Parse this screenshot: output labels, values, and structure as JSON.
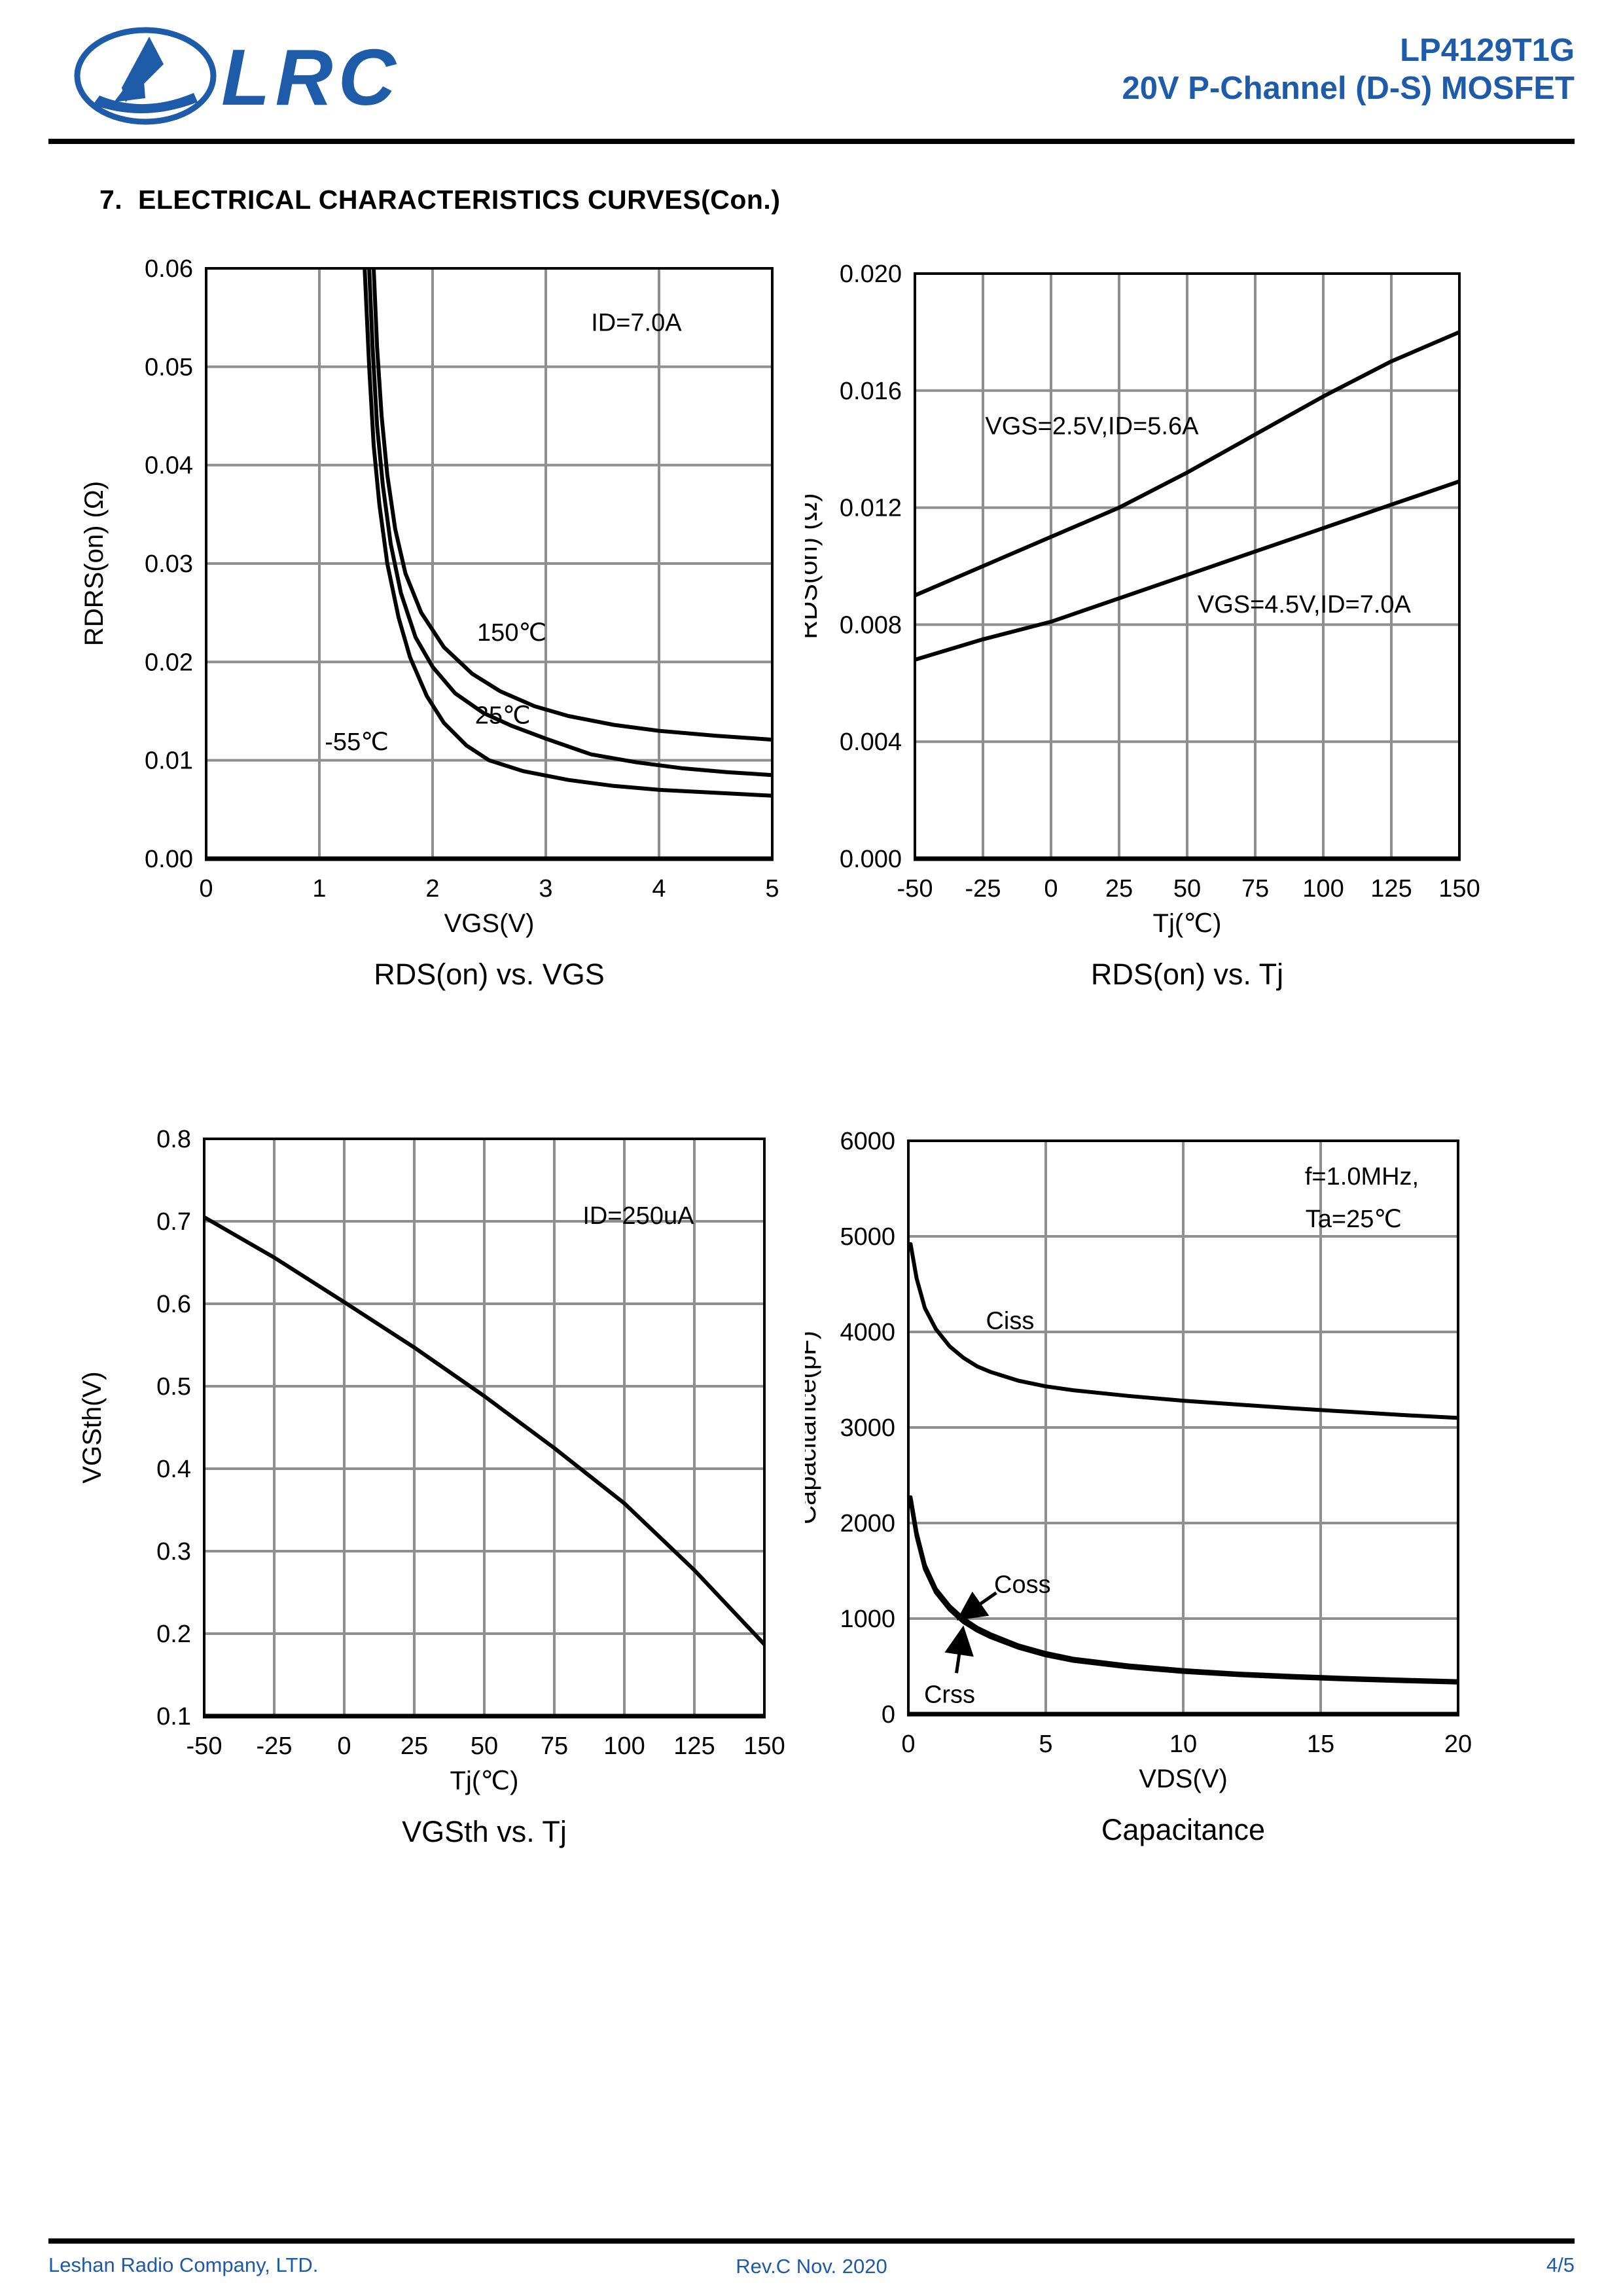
{
  "header": {
    "logo_text": "LRC",
    "part_number": "LP4129T1G",
    "subtitle": "20V P-Channel (D-S) MOSFET",
    "brand_blue": "#1E5BA9"
  },
  "section_title": "7.  ELECTRICAL CHARACTERISTICS CURVES(Con.)",
  "footer": {
    "company": "Leshan Radio Company, LTD.",
    "revision": "Rev.C  Nov.  2020",
    "page": "4/5"
  },
  "chart_data": [
    {
      "type": "line",
      "title": "RDS(on) vs. VGS",
      "xlabel": "VGS(V)",
      "ylabel": "RDRS(on) (Ω)",
      "xlim": [
        0,
        5
      ],
      "ylim": [
        0,
        0.06
      ],
      "grid": true,
      "legend_position": "inline-labels",
      "xticks": {
        "values": [
          0,
          1,
          2,
          3,
          4,
          5
        ],
        "labels": [
          "0",
          "1",
          "2",
          "3",
          "4",
          "5"
        ]
      },
      "yticks": {
        "values": [
          0,
          0.01,
          0.02,
          0.03,
          0.04,
          0.05,
          0.06
        ],
        "labels": [
          "0.00",
          "0.01",
          "0.02",
          "0.03",
          "0.04",
          "0.05",
          "0.06"
        ]
      },
      "series": [
        {
          "name": "150℃",
          "x": [
            1.48,
            1.51,
            1.55,
            1.6,
            1.67,
            1.76,
            1.9,
            2.1,
            2.35,
            2.6,
            2.9,
            3.2,
            3.6,
            4.0,
            4.5,
            5.0
          ],
          "y": [
            0.06,
            0.052,
            0.045,
            0.039,
            0.0335,
            0.029,
            0.025,
            0.0215,
            0.0188,
            0.017,
            0.0155,
            0.0145,
            0.0136,
            0.013,
            0.0125,
            0.0121
          ]
        },
        {
          "name": "25℃",
          "x": [
            1.44,
            1.47,
            1.51,
            1.56,
            1.63,
            1.72,
            1.85,
            2.0,
            2.2,
            2.45,
            2.7,
            3.0,
            3.4,
            3.8,
            4.2,
            4.6,
            5.0
          ],
          "y": [
            0.06,
            0.052,
            0.044,
            0.038,
            0.032,
            0.027,
            0.0225,
            0.0195,
            0.0168,
            0.0148,
            0.0135,
            0.0122,
            0.0106,
            0.0098,
            0.0092,
            0.0088,
            0.0085
          ]
        },
        {
          "name": "-55℃",
          "x": [
            1.4,
            1.44,
            1.48,
            1.53,
            1.6,
            1.7,
            1.8,
            1.95,
            2.1,
            2.3,
            2.5,
            2.8,
            3.2,
            3.6,
            4.0,
            4.5,
            5.0
          ],
          "y": [
            0.06,
            0.05,
            0.042,
            0.036,
            0.03,
            0.0245,
            0.0205,
            0.0165,
            0.0138,
            0.0115,
            0.01,
            0.0089,
            0.008,
            0.0074,
            0.007,
            0.0067,
            0.0064
          ]
        }
      ],
      "annotations": [
        {
          "name": "condition-label",
          "text": "ID=7.0A",
          "x": 3.8,
          "y": 0.0545,
          "anchor": "middle"
        },
        {
          "name": "curve-label-150c",
          "text": "150℃",
          "x": 2.7,
          "y": 0.023,
          "anchor": "middle"
        },
        {
          "name": "curve-label-25c",
          "text": "25℃",
          "x": 2.62,
          "y": 0.0146,
          "anchor": "middle"
        },
        {
          "name": "curve-label-minus55c",
          "text": "-55℃",
          "x": 1.33,
          "y": 0.0119,
          "anchor": "middle"
        }
      ]
    },
    {
      "type": "line",
      "title": "RDS(on) vs. Tj",
      "xlabel": "Tj(℃)",
      "ylabel": "RDS(on) (Ω)",
      "xlim": [
        -50,
        150
      ],
      "ylim": [
        0,
        0.02
      ],
      "grid": true,
      "legend_position": "inline-labels",
      "xticks": {
        "values": [
          -50,
          -25,
          0,
          25,
          50,
          75,
          100,
          125,
          150
        ],
        "labels": [
          "-50",
          "-25",
          "0",
          "25",
          "50",
          "75",
          "100",
          "125",
          "150"
        ]
      },
      "yticks": {
        "values": [
          0,
          0.004,
          0.008,
          0.012,
          0.016,
          0.02
        ],
        "labels": [
          "0.000",
          "0.004",
          "0.008",
          "0.012",
          "0.016",
          "0.020"
        ]
      },
      "series": [
        {
          "name": "VGS=2.5V,ID=5.6A",
          "x": [
            -50,
            -25,
            0,
            25,
            50,
            75,
            100,
            125,
            150
          ],
          "y": [
            0.009,
            0.01,
            0.011,
            0.012,
            0.0132,
            0.0145,
            0.0158,
            0.017,
            0.018
          ]
        },
        {
          "name": "VGS=4.5V,ID=7.0A",
          "x": [
            -50,
            -25,
            0,
            25,
            50,
            75,
            100,
            125,
            150
          ],
          "y": [
            0.0068,
            0.0075,
            0.0081,
            0.0089,
            0.0097,
            0.0105,
            0.0113,
            0.0121,
            0.0129
          ]
        }
      ],
      "annotations": [
        {
          "name": "curve-label-vgs2p5",
          "text": "VGS=2.5V,ID=5.6A",
          "x": 15,
          "y": 0.0148,
          "anchor": "middle"
        },
        {
          "name": "curve-label-vgs4p5",
          "text": "VGS=4.5V,ID=7.0A",
          "x": 93,
          "y": 0.0087,
          "anchor": "middle"
        }
      ]
    },
    {
      "type": "line",
      "title": "VGSth vs. Tj",
      "xlabel": "Tj(℃)",
      "ylabel": "VGSth(V)",
      "xlim": [
        -50,
        150
      ],
      "ylim": [
        0.1,
        0.8
      ],
      "grid": true,
      "legend_position": "inline-labels",
      "xticks": {
        "values": [
          -50,
          -25,
          0,
          25,
          50,
          75,
          100,
          125,
          150
        ],
        "labels": [
          "-50",
          "-25",
          "0",
          "25",
          "50",
          "75",
          "100",
          "125",
          "150"
        ]
      },
      "yticks": {
        "values": [
          0.1,
          0.2,
          0.3,
          0.4,
          0.5,
          0.6,
          0.7,
          0.8
        ],
        "labels": [
          "0.1",
          "0.2",
          "0.3",
          "0.4",
          "0.5",
          "0.6",
          "0.7",
          "0.8"
        ]
      },
      "series": [
        {
          "name": "VGSth",
          "x": [
            -50,
            -25,
            0,
            25,
            50,
            75,
            100,
            125,
            150
          ],
          "y": [
            0.705,
            0.656,
            0.602,
            0.547,
            0.488,
            0.425,
            0.358,
            0.277,
            0.187
          ]
        }
      ],
      "annotations": [
        {
          "name": "condition-label",
          "text": "ID=250uA",
          "x": 105,
          "y": 0.707,
          "anchor": "middle"
        }
      ]
    },
    {
      "type": "line",
      "title": "Capacitance",
      "xlabel": "VDS(V)",
      "ylabel": "Capacitance(pF)",
      "xlim": [
        0,
        20
      ],
      "ylim": [
        0,
        6000
      ],
      "grid": true,
      "legend_position": "inline-labels",
      "xticks": {
        "values": [
          0,
          5,
          10,
          15,
          20
        ],
        "labels": [
          "0",
          "5",
          "10",
          "15",
          "20"
        ]
      },
      "yticks": {
        "values": [
          0,
          1000,
          2000,
          3000,
          4000,
          5000,
          6000
        ],
        "labels": [
          "0",
          "1000",
          "2000",
          "3000",
          "4000",
          "5000",
          "6000"
        ]
      },
      "series": [
        {
          "name": "Ciss",
          "x": [
            0.08,
            0.3,
            0.6,
            1,
            1.5,
            2,
            2.5,
            3,
            4,
            5,
            6,
            8,
            10,
            12,
            14,
            16,
            18,
            20
          ],
          "y": [
            4920,
            4560,
            4250,
            4030,
            3850,
            3730,
            3640,
            3580,
            3490,
            3430,
            3390,
            3330,
            3280,
            3240,
            3200,
            3165,
            3130,
            3100
          ]
        },
        {
          "name": "Coss",
          "x": [
            0.08,
            0.3,
            0.6,
            1,
            1.5,
            2,
            2.5,
            3,
            4,
            5,
            6,
            8,
            10,
            12,
            14,
            16,
            18,
            20
          ],
          "y": [
            2270,
            1900,
            1560,
            1310,
            1130,
            1000,
            905,
            835,
            720,
            640,
            580,
            510,
            460,
            425,
            400,
            378,
            360,
            345
          ]
        },
        {
          "name": "Crss",
          "x": [
            0.08,
            0.3,
            0.6,
            1,
            1.5,
            2,
            2.5,
            3,
            4,
            5,
            6,
            8,
            10,
            12,
            14,
            16,
            18,
            20
          ],
          "y": [
            2230,
            1860,
            1520,
            1275,
            1095,
            965,
            875,
            805,
            695,
            615,
            558,
            490,
            442,
            408,
            383,
            362,
            345,
            330
          ]
        }
      ],
      "annotations": [
        {
          "name": "condition-label-freq",
          "text": "f=1.0MHz,",
          "x": 16.5,
          "y": 5630,
          "anchor": "middle"
        },
        {
          "name": "condition-label-temp",
          "text": "Ta=25℃",
          "x": 16.2,
          "y": 5185,
          "anchor": "middle"
        },
        {
          "name": "curve-label-ciss",
          "text": "Ciss",
          "x": 3.7,
          "y": 4120,
          "anchor": "middle"
        },
        {
          "name": "curve-label-coss",
          "text": "Coss",
          "x": 4.15,
          "y": 1360,
          "anchor": "middle"
        },
        {
          "name": "curve-label-crss",
          "text": "Crss",
          "x": 1.5,
          "y": 210,
          "anchor": "middle"
        }
      ],
      "arrows": [
        {
          "name": "coss-arrow",
          "x1": 3.2,
          "y1": 1270,
          "x2": 1.95,
          "y2": 1020
        },
        {
          "name": "crss-arrow",
          "x1": 1.75,
          "y1": 430,
          "x2": 1.97,
          "y2": 860
        }
      ]
    }
  ]
}
